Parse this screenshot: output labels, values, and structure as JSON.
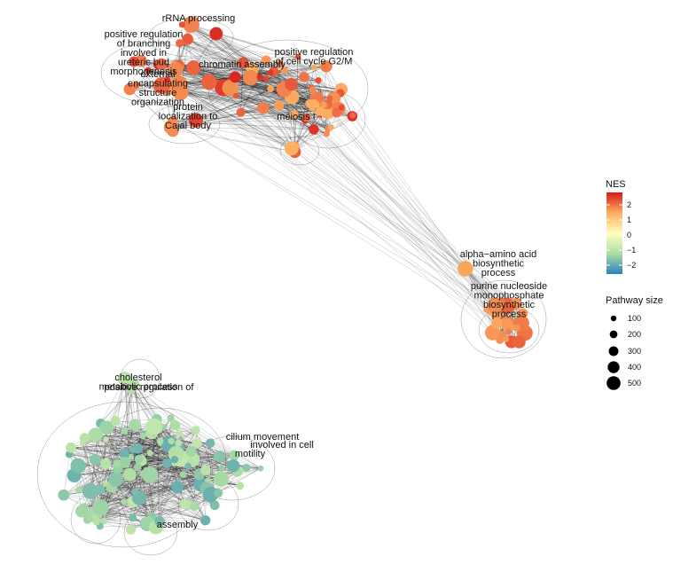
{
  "legend": {
    "color_title": "NES",
    "color_ticks": [
      "2",
      "1",
      "0",
      "−1",
      "−2"
    ],
    "color_range": [
      -2.5,
      2.5
    ],
    "color_stops": [
      "#2b83ba",
      "#abdda4",
      "#ffffbf",
      "#fdae61",
      "#d7191c"
    ],
    "size_title": "Pathway size",
    "size_ticks": [
      "100",
      "200",
      "300",
      "400",
      "500"
    ]
  },
  "clusters": [
    {
      "id": "upper",
      "nes_range": [
        1.2,
        2.4
      ],
      "labels": [
        {
          "text": "rRNA processing",
          "lines": [
            "rRNA processing"
          ]
        },
        {
          "text": "positive regulation of branching involved in ureteric bud morphogenesis",
          "lines": [
            "positive regulation",
            "of branching",
            "involved in",
            "ureteric bud",
            "morphogenesis"
          ]
        },
        {
          "text": "chromatin assembly",
          "lines": [
            "chromatin assembly"
          ]
        },
        {
          "text": "positive regulation of cell cycle G2/M",
          "lines": [
            "positive regulation",
            "of cell cycle G2/M"
          ]
        },
        {
          "text": "external encapsulating structure organization",
          "lines": [
            "external",
            "encapsulating",
            "structure",
            "organization"
          ]
        },
        {
          "text": "protein localization to Cajal body",
          "lines": [
            "protein",
            "localization to",
            "Cajal body"
          ]
        },
        {
          "text": "meiosis I",
          "lines": [
            "meiosis I"
          ]
        }
      ]
    },
    {
      "id": "right",
      "nes_range": [
        1.3,
        2.0
      ],
      "labels": [
        {
          "text": "alpha-amino acid biosynthetic process",
          "lines": [
            "alpha−amino acid",
            "biosynthetic",
            "process"
          ]
        },
        {
          "text": "purine nucleoside monophosphate biosynthetic process",
          "lines": [
            "purine nucleoside",
            "monophosphate",
            "biosynthetic",
            "process"
          ]
        }
      ]
    },
    {
      "id": "lower",
      "nes_range": [
        -1.9,
        -0.9
      ],
      "labels": [
        {
          "text": "cholesterol metabolic process",
          "lines": [
            "cholesterol",
            "metabolic process"
          ]
        },
        {
          "text": "positive regulation of",
          "lines": [
            "positive regulation of"
          ]
        },
        {
          "text": "cilium movement",
          "lines": [
            "cilium movement"
          ]
        },
        {
          "text": "involved in cell",
          "lines": [
            "involved in cell"
          ]
        },
        {
          "text": "motility",
          "lines": [
            "motility"
          ]
        },
        {
          "text": "assembly",
          "lines": [
            "assembly"
          ]
        }
      ]
    }
  ]
}
